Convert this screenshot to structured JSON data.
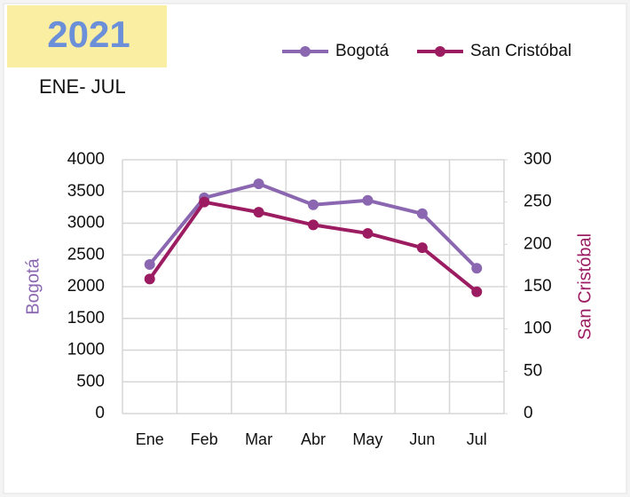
{
  "chart_data": {
    "type": "line",
    "title": "2021",
    "subtitle": "ENE- JUL",
    "categories": [
      "Ene",
      "Feb",
      "Mar",
      "Abr",
      "May",
      "Jun",
      "Jul"
    ],
    "series": [
      {
        "name": "Bogotá",
        "color": "#8a67b0",
        "values": [
          2350,
          3400,
          3620,
          3290,
          3360,
          3150,
          2290
        ]
      },
      {
        "name": "San Cristóbal",
        "color": "#9c1c62",
        "axis": "y2",
        "values": [
          159,
          250,
          238,
          223,
          213,
          196,
          144
        ]
      }
    ],
    "ylabel": "Bogotá",
    "y2label": "San Cristóbal",
    "ylim": [
      0,
      4000
    ],
    "yticks": [
      0,
      500,
      1000,
      1500,
      2000,
      2500,
      3000,
      3500,
      4000
    ],
    "y2lim": [
      0,
      300
    ],
    "y2ticks": [
      0,
      50,
      100,
      150,
      200,
      250,
      300
    ],
    "grid": true,
    "legend": "top-right"
  }
}
